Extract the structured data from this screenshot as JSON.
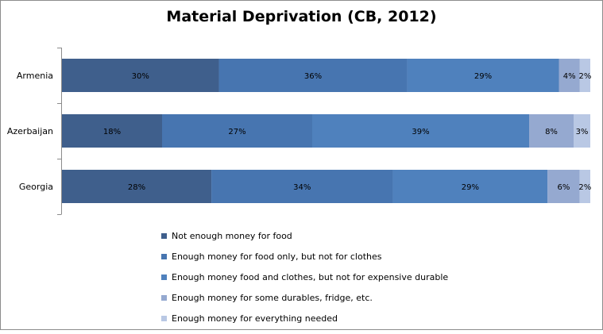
{
  "chart_data": {
    "type": "bar",
    "orientation": "horizontal",
    "stacked": "100%",
    "title": "Material Deprivation (CB, 2012)",
    "categories": [
      "Armenia",
      "Azerbaijan",
      "Georgia"
    ],
    "series": [
      {
        "name": "Not enough money for food",
        "color": "#3f5f8c",
        "values": [
          30,
          18,
          28
        ],
        "labels": [
          "30%",
          "18%",
          "28%"
        ]
      },
      {
        "name": "Enough money for food only, but not for clothes",
        "color": "#4775b0",
        "values": [
          36,
          27,
          34
        ],
        "labels": [
          "36%",
          "27%",
          "34%"
        ]
      },
      {
        "name": "Enough money food and clothes, but not for expensive durable",
        "color": "#4f81bd",
        "values": [
          29,
          39,
          29
        ],
        "labels": [
          "29%",
          "39%",
          "29%"
        ]
      },
      {
        "name": "Enough money for some durables, fridge, etc.",
        "color": "#95a9d0",
        "values": [
          4,
          8,
          6
        ],
        "labels": [
          "4%",
          "8%",
          "6%"
        ]
      },
      {
        "name": "Enough money for everything needed",
        "color": "#b9c8e4",
        "values": [
          2,
          3,
          2
        ],
        "labels": [
          "2%",
          "3%",
          "2%"
        ]
      }
    ],
    "xlim": [
      0,
      100
    ],
    "grid": false,
    "legend_position": "bottom"
  }
}
